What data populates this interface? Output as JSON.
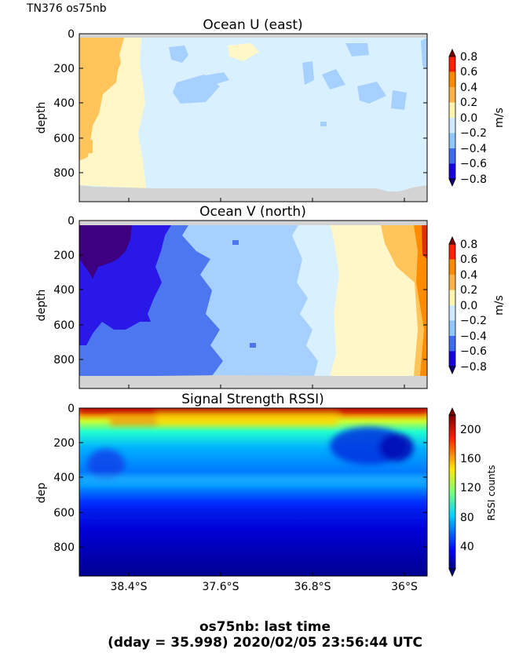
{
  "header": {
    "cruise_label": "TN376 os75nb"
  },
  "footer": {
    "line1": "os75nb: last time",
    "line2": "(dday = 35.998) 2020/02/05 23:56:44 UTC"
  },
  "chart_data": [
    {
      "type": "heatmap",
      "title": "Ocean U (east)",
      "ylabel": "depth",
      "ylim": [
        970,
        0
      ],
      "yticks": [
        "0",
        "200",
        "400",
        "600",
        "800"
      ],
      "colorbar": {
        "label": "m/s",
        "ticks": [
          "0.8",
          "0.6",
          "0.4",
          "0.2",
          "0.0",
          "−0.2",
          "−0.4",
          "−0.6",
          "−0.8"
        ]
      },
      "x_lat_range": [
        -38.75,
        -35.87
      ],
      "summary": [
        {
          "lat_from": -38.75,
          "lat_to": -38.5,
          "value": 0.2
        },
        {
          "lat_from": -38.5,
          "lat_to": -38.0,
          "value": 0.1
        },
        {
          "lat_from": -38.0,
          "lat_to": -35.87,
          "value": -0.1
        }
      ]
    },
    {
      "type": "heatmap",
      "title": "Ocean V (north)",
      "ylabel": "depth",
      "ylim": [
        970,
        0
      ],
      "yticks": [
        "0",
        "200",
        "400",
        "600",
        "800"
      ],
      "colorbar": {
        "label": "m/s",
        "ticks": [
          "0.8",
          "0.6",
          "0.4",
          "0.2",
          "0.0",
          "−0.2",
          "−0.4",
          "−0.6",
          "−0.8"
        ]
      },
      "x_lat_range": [
        -38.75,
        -35.87
      ],
      "summary": [
        {
          "lat_from": -38.75,
          "lat_to": -38.4,
          "value": -0.8
        },
        {
          "lat_from": -38.4,
          "lat_to": -38.0,
          "value": -0.7
        },
        {
          "lat_from": -38.0,
          "lat_to": -37.5,
          "value": -0.5
        },
        {
          "lat_from": -37.5,
          "lat_to": -37.0,
          "value": -0.3
        },
        {
          "lat_from": -37.0,
          "lat_to": -36.7,
          "value": -0.1
        },
        {
          "lat_from": -36.7,
          "lat_to": -36.3,
          "value": 0.1
        },
        {
          "lat_from": -36.3,
          "lat_to": -36.0,
          "value": 0.3
        },
        {
          "lat_from": -36.0,
          "lat_to": -35.87,
          "value": 0.5
        }
      ]
    },
    {
      "type": "heatmap",
      "title": "Signal Strength RSSI)",
      "ylabel": "dep",
      "ylim": [
        970,
        0
      ],
      "yticks": [
        "0",
        "200",
        "400",
        "600",
        "800"
      ],
      "xticks": [
        "38.4°S",
        "37.6°S",
        "36.8°S",
        "36°S"
      ],
      "colorbar": {
        "label": "RSSI counts",
        "ticks": [
          "200",
          "160",
          "120",
          "80",
          "40"
        ]
      },
      "x_lat_range": [
        -38.75,
        -35.87
      ],
      "depth_profile": [
        {
          "depth": 20,
          "value": 210
        },
        {
          "depth": 60,
          "value": 150
        },
        {
          "depth": 120,
          "value": 100
        },
        {
          "depth": 250,
          "value": 75
        },
        {
          "depth": 400,
          "value": 60
        },
        {
          "depth": 600,
          "value": 35
        },
        {
          "depth": 900,
          "value": 20
        }
      ]
    }
  ]
}
